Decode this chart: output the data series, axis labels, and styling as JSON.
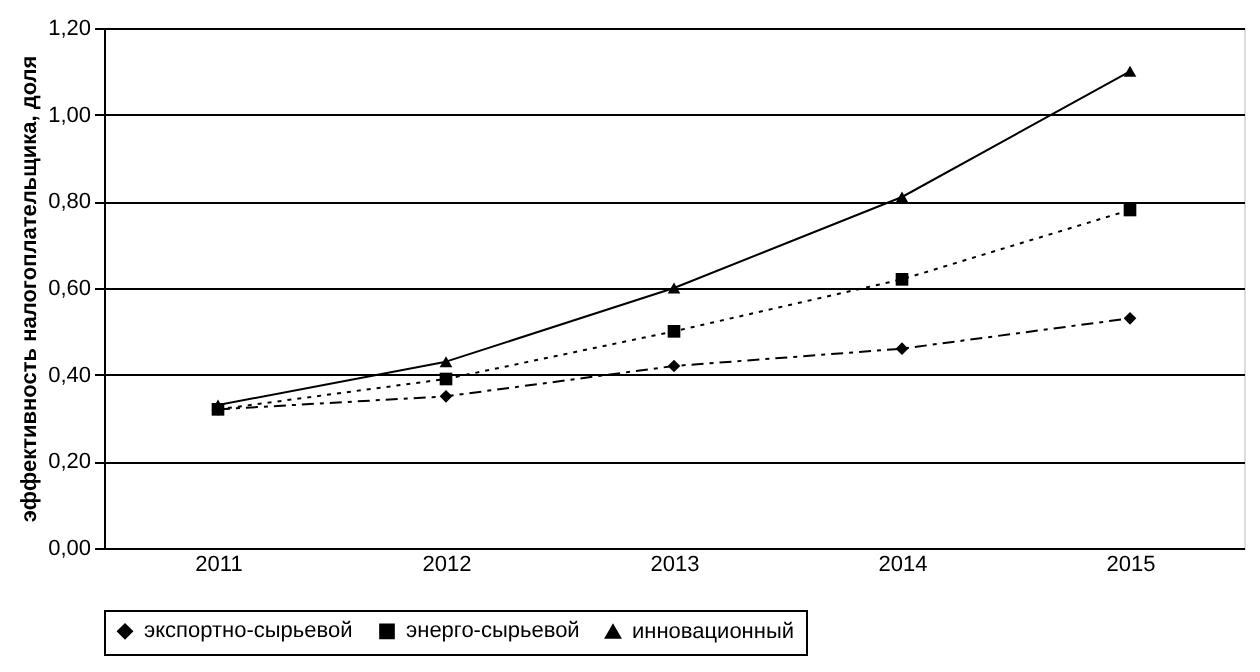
{
  "chart_data": {
    "type": "line",
    "ylabel": "эффективность налогоплательщика, доля",
    "categories": [
      "2011",
      "2012",
      "2013",
      "2014",
      "2015"
    ],
    "series": [
      {
        "name": "экспортно-сырьевой",
        "color": "#000000",
        "marker": "diamond",
        "line_style": "dashed",
        "values": [
          0.32,
          0.35,
          0.42,
          0.46,
          0.53
        ]
      },
      {
        "name": "энерго-сырьевой",
        "color": "#000000",
        "marker": "square",
        "line_style": "dotted",
        "values": [
          0.32,
          0.39,
          0.5,
          0.62,
          0.78
        ]
      },
      {
        "name": "инновационный",
        "color": "#000000",
        "marker": "triangle",
        "line_style": "solid",
        "values": [
          0.33,
          0.43,
          0.6,
          0.81,
          1.1
        ]
      }
    ],
    "ylim": [
      0,
      1.2
    ],
    "yticks": [
      {
        "value": 0,
        "label": "0,00"
      },
      {
        "value": 0.2,
        "label": "0,20"
      },
      {
        "value": 0.4,
        "label": "0,40"
      },
      {
        "value": 0.6,
        "label": "0,60"
      },
      {
        "value": 0.8,
        "label": "0,80"
      },
      {
        "value": 1.0,
        "label": "1,00"
      },
      {
        "value": 1.2,
        "label": "1,20"
      }
    ],
    "grid": "y",
    "legend": "bottom"
  }
}
